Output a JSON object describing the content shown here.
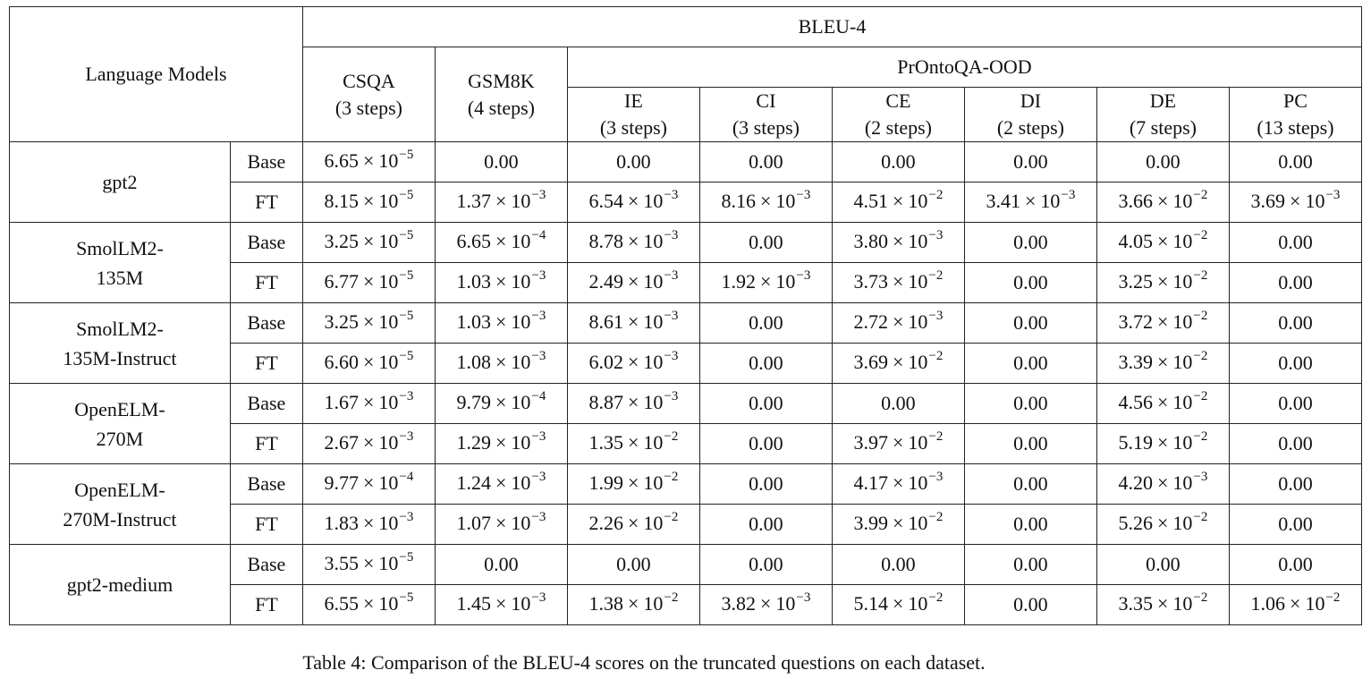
{
  "header": {
    "language_models": "Language Models",
    "metric": "BLEU-4",
    "pronto_group": "PrOntoQA-OOD",
    "columns": [
      {
        "name": "CSQA",
        "steps": "(3 steps)"
      },
      {
        "name": "GSM8K",
        "steps": "(4 steps)"
      },
      {
        "name": "IE",
        "steps": "(3 steps)"
      },
      {
        "name": "CI",
        "steps": "(3 steps)"
      },
      {
        "name": "CE",
        "steps": "(2 steps)"
      },
      {
        "name": "DI",
        "steps": "(2 steps)"
      },
      {
        "name": "DE",
        "steps": "(7 steps)"
      },
      {
        "name": "PC",
        "steps": "(13 steps)"
      }
    ]
  },
  "models": [
    {
      "name_lines": [
        "gpt2"
      ],
      "rows": [
        {
          "variant": "Base",
          "cells": [
            {
              "m": "6.65",
              "e": "−5"
            },
            {
              "m": "0.00"
            },
            {
              "m": "0.00"
            },
            {
              "m": "0.00"
            },
            {
              "m": "0.00"
            },
            {
              "m": "0.00"
            },
            {
              "m": "0.00"
            },
            {
              "m": "0.00"
            }
          ]
        },
        {
          "variant": "FT",
          "cells": [
            {
              "m": "8.15",
              "e": "−5"
            },
            {
              "m": "1.37",
              "e": "−3"
            },
            {
              "m": "6.54",
              "e": "−3"
            },
            {
              "m": "8.16",
              "e": "−3"
            },
            {
              "m": "4.51",
              "e": "−2"
            },
            {
              "m": "3.41",
              "e": "−3"
            },
            {
              "m": "3.66",
              "e": "−2"
            },
            {
              "m": "3.69",
              "e": "−3"
            }
          ]
        }
      ]
    },
    {
      "name_lines": [
        "SmolLM2-",
        "135M"
      ],
      "rows": [
        {
          "variant": "Base",
          "cells": [
            {
              "m": "3.25",
              "e": "−5"
            },
            {
              "m": "6.65",
              "e": "−4"
            },
            {
              "m": "8.78",
              "e": "−3"
            },
            {
              "m": "0.00"
            },
            {
              "m": "3.80",
              "e": "−3"
            },
            {
              "m": "0.00"
            },
            {
              "m": "4.05",
              "e": "−2"
            },
            {
              "m": "0.00"
            }
          ]
        },
        {
          "variant": "FT",
          "cells": [
            {
              "m": "6.77",
              "e": "−5"
            },
            {
              "m": "1.03",
              "e": "−3"
            },
            {
              "m": "2.49",
              "e": "−3"
            },
            {
              "m": "1.92",
              "e": "−3"
            },
            {
              "m": "3.73",
              "e": "−2"
            },
            {
              "m": "0.00"
            },
            {
              "m": "3.25",
              "e": "−2"
            },
            {
              "m": "0.00"
            }
          ]
        }
      ]
    },
    {
      "name_lines": [
        "SmolLM2-",
        "135M-Instruct"
      ],
      "rows": [
        {
          "variant": "Base",
          "cells": [
            {
              "m": "3.25",
              "e": "−5"
            },
            {
              "m": "1.03",
              "e": "−3"
            },
            {
              "m": "8.61",
              "e": "−3"
            },
            {
              "m": "0.00"
            },
            {
              "m": "2.72",
              "e": "−3"
            },
            {
              "m": "0.00"
            },
            {
              "m": "3.72",
              "e": "−2"
            },
            {
              "m": "0.00"
            }
          ]
        },
        {
          "variant": "FT",
          "cells": [
            {
              "m": "6.60",
              "e": "−5"
            },
            {
              "m": "1.08",
              "e": "−3"
            },
            {
              "m": "6.02",
              "e": "−3"
            },
            {
              "m": "0.00"
            },
            {
              "m": "3.69",
              "e": "−2"
            },
            {
              "m": "0.00"
            },
            {
              "m": "3.39",
              "e": "−2"
            },
            {
              "m": "0.00"
            }
          ]
        }
      ]
    },
    {
      "name_lines": [
        "OpenELM-",
        "270M"
      ],
      "rows": [
        {
          "variant": "Base",
          "cells": [
            {
              "m": "1.67",
              "e": "−3"
            },
            {
              "m": "9.79",
              "e": "−4"
            },
            {
              "m": "8.87",
              "e": "−3"
            },
            {
              "m": "0.00"
            },
            {
              "m": "0.00"
            },
            {
              "m": "0.00"
            },
            {
              "m": "4.56",
              "e": "−2"
            },
            {
              "m": "0.00"
            }
          ]
        },
        {
          "variant": "FT",
          "cells": [
            {
              "m": "2.67",
              "e": "−3"
            },
            {
              "m": "1.29",
              "e": "−3"
            },
            {
              "m": "1.35",
              "e": "−2"
            },
            {
              "m": "0.00"
            },
            {
              "m": "3.97",
              "e": "−2"
            },
            {
              "m": "0.00"
            },
            {
              "m": "5.19",
              "e": "−2"
            },
            {
              "m": "0.00"
            }
          ]
        }
      ]
    },
    {
      "name_lines": [
        "OpenELM-",
        "270M-Instruct"
      ],
      "rows": [
        {
          "variant": "Base",
          "cells": [
            {
              "m": "9.77",
              "e": "−4"
            },
            {
              "m": "1.24",
              "e": "−3"
            },
            {
              "m": "1.99",
              "e": "−2"
            },
            {
              "m": "0.00"
            },
            {
              "m": "4.17",
              "e": "−3"
            },
            {
              "m": "0.00"
            },
            {
              "m": "4.20",
              "e": "−3"
            },
            {
              "m": "0.00"
            }
          ]
        },
        {
          "variant": "FT",
          "cells": [
            {
              "m": "1.83",
              "e": "−3"
            },
            {
              "m": "1.07",
              "e": "−3"
            },
            {
              "m": "2.26",
              "e": "−2"
            },
            {
              "m": "0.00"
            },
            {
              "m": "3.99",
              "e": "−2"
            },
            {
              "m": "0.00"
            },
            {
              "m": "5.26",
              "e": "−2"
            },
            {
              "m": "0.00"
            }
          ]
        }
      ]
    },
    {
      "name_lines": [
        "gpt2-medium"
      ],
      "rows": [
        {
          "variant": "Base",
          "cells": [
            {
              "m": "3.55",
              "e": "−5"
            },
            {
              "m": "0.00"
            },
            {
              "m": "0.00"
            },
            {
              "m": "0.00"
            },
            {
              "m": "0.00"
            },
            {
              "m": "0.00"
            },
            {
              "m": "0.00"
            },
            {
              "m": "0.00"
            }
          ]
        },
        {
          "variant": "FT",
          "cells": [
            {
              "m": "6.55",
              "e": "−5"
            },
            {
              "m": "1.45",
              "e": "−3"
            },
            {
              "m": "1.38",
              "e": "−2"
            },
            {
              "m": "3.82",
              "e": "−3"
            },
            {
              "m": "5.14",
              "e": "−2"
            },
            {
              "m": "0.00"
            },
            {
              "m": "3.35",
              "e": "−2"
            },
            {
              "m": "1.06",
              "e": "−2"
            }
          ]
        }
      ]
    }
  ],
  "caption": "Table 4: Comparison of the BLEU-4 scores on the truncated questions on each dataset."
}
